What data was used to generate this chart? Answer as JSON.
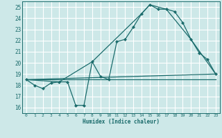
{
  "title": "",
  "xlabel": "Humidex (Indice chaleur)",
  "ylabel": "",
  "bg_color": "#cde8e8",
  "grid_color": "#ffffff",
  "line_color": "#1a6b6b",
  "xlim": [
    -0.5,
    23.5
  ],
  "ylim": [
    15.5,
    25.5
  ],
  "xticks": [
    0,
    1,
    2,
    3,
    4,
    5,
    6,
    7,
    8,
    9,
    10,
    11,
    12,
    13,
    14,
    15,
    16,
    17,
    18,
    19,
    20,
    21,
    22,
    23
  ],
  "yticks": [
    16,
    17,
    18,
    19,
    20,
    21,
    22,
    23,
    24,
    25
  ],
  "series_main": {
    "x": [
      0,
      1,
      2,
      3,
      4,
      5,
      6,
      7,
      8,
      9,
      10,
      11,
      12,
      13,
      14,
      15,
      16,
      17,
      18,
      19,
      20,
      21,
      22,
      23
    ],
    "y": [
      18.5,
      18.0,
      17.7,
      18.2,
      18.3,
      18.3,
      16.2,
      16.2,
      20.1,
      18.8,
      18.5,
      21.9,
      22.1,
      23.2,
      24.4,
      25.2,
      24.8,
      24.8,
      24.6,
      23.6,
      22.1,
      20.9,
      20.3,
      19.0
    ]
  },
  "series_envelope": {
    "x": [
      0,
      4,
      8,
      14,
      15,
      17,
      20,
      23
    ],
    "y": [
      18.5,
      18.3,
      20.1,
      24.4,
      25.2,
      24.8,
      22.1,
      19.0
    ]
  },
  "series_line1": {
    "x": [
      0,
      23
    ],
    "y": [
      18.5,
      19.0
    ]
  },
  "series_line2": {
    "x": [
      0,
      23
    ],
    "y": [
      18.5,
      18.5
    ]
  }
}
